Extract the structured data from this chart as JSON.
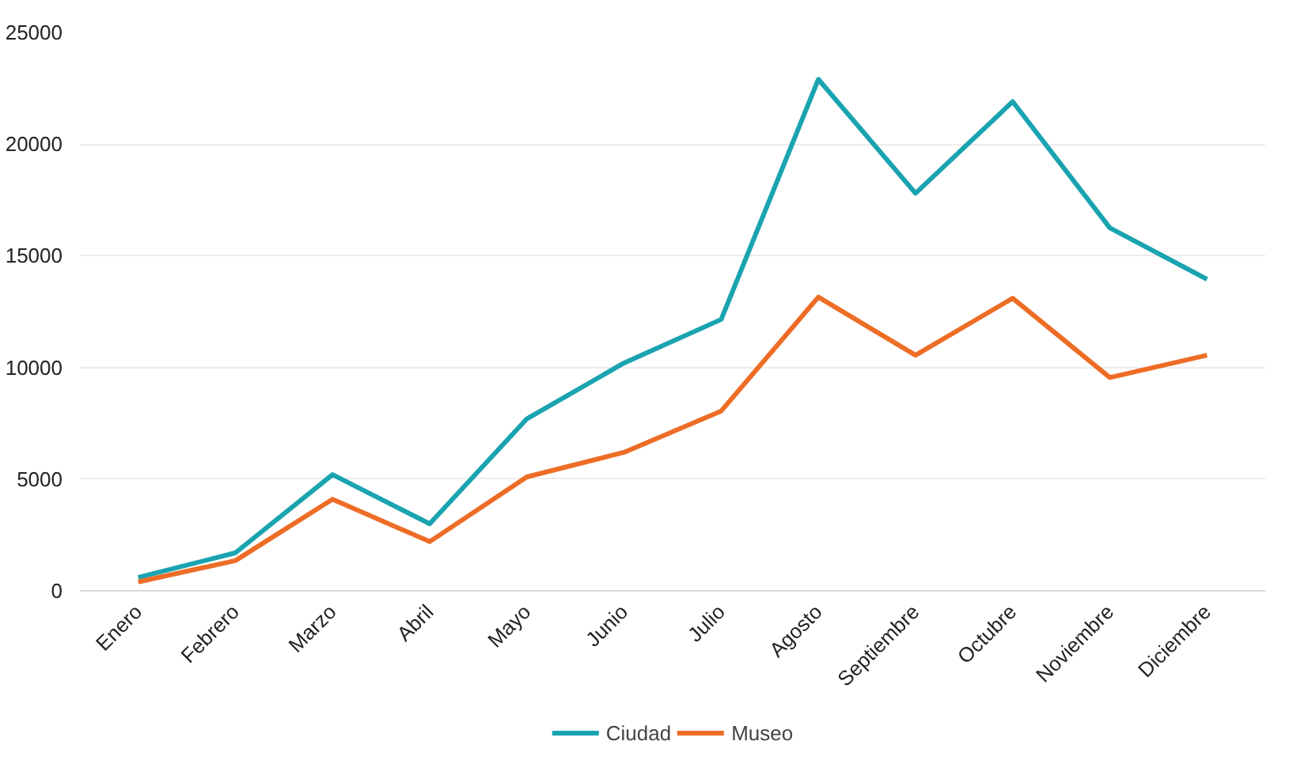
{
  "chart_data": {
    "type": "line",
    "categories": [
      "Enero",
      "Febrero",
      "Marzo",
      "Abril",
      "Mayo",
      "Junio",
      "Julio",
      "Agosto",
      "Septiembre",
      "Octubre",
      "Noviembre",
      "Diciembre"
    ],
    "series": [
      {
        "name": "Ciudad",
        "color": "#1aa3b0",
        "values": [
          600,
          1700,
          5200,
          3000,
          7700,
          10200,
          12150,
          22900,
          17800,
          21900,
          16250,
          13950
        ]
      },
      {
        "name": "Museo",
        "color": "#ee6d26",
        "values": [
          400,
          1350,
          4100,
          2200,
          5100,
          6200,
          8050,
          13150,
          10550,
          13100,
          9550,
          10550
        ]
      }
    ],
    "ylim": [
      0,
      25000
    ],
    "yticks": [
      0,
      5000,
      10000,
      15000,
      20000,
      25000
    ],
    "grid": "y",
    "legend": "bottom",
    "marker": "none",
    "line_style": "solid"
  }
}
